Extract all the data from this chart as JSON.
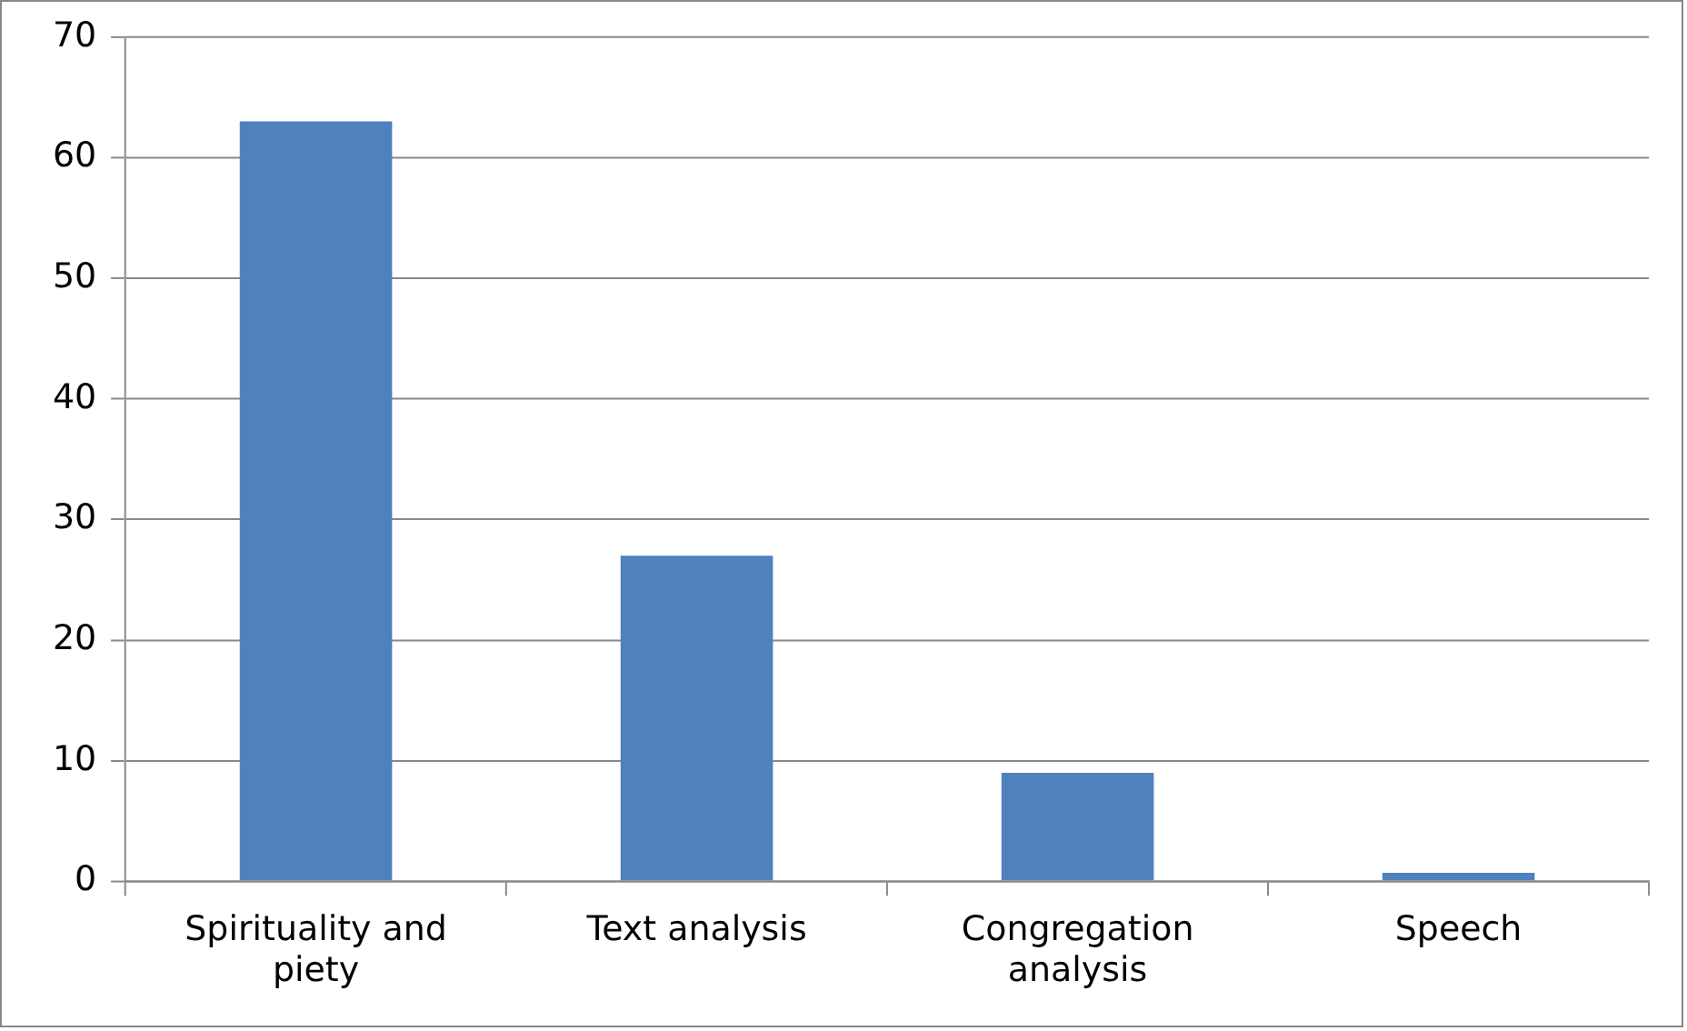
{
  "chart_data": {
    "type": "bar",
    "categories": [
      "Spirituality and piety",
      "Text analysis",
      "Congregation analysis",
      "Speech"
    ],
    "values": [
      63,
      27,
      9,
      0.7
    ],
    "color": "#4f81bd",
    "ylim": [
      0,
      70
    ],
    "yticks": [
      0,
      10,
      20,
      30,
      40,
      50,
      60,
      70
    ],
    "grid": "y",
    "legend": false
  }
}
